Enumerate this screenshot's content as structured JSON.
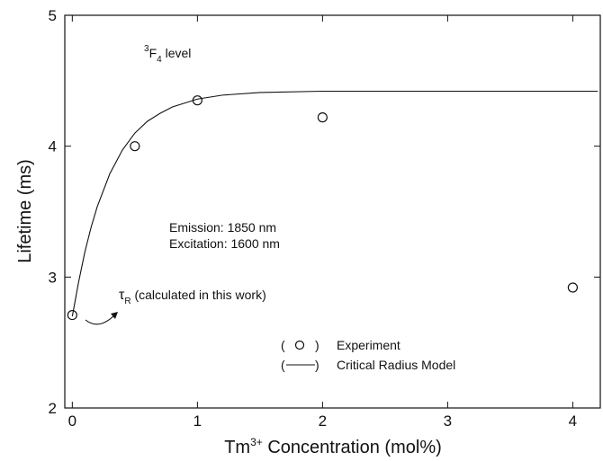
{
  "chart_data": {
    "type": "scatter",
    "x_label": {
      "main": "Tm",
      "sup": "3+",
      "rest": " Concentration (mol%)"
    },
    "y_label": "Lifetime (ms)",
    "level_label": {
      "sup": "3",
      "main": "F",
      "sub": "4",
      "rest": " level"
    },
    "emission_note": [
      "Emission: 1850 nm",
      "Excitation: 1600 nm"
    ],
    "tau_note": {
      "main": "τ",
      "sub": "R",
      "rest": " (calculated in this work)"
    },
    "xlim": [
      -0.06,
      4.22
    ],
    "ylim": [
      2,
      5
    ],
    "xticks": [
      0,
      1,
      2,
      3,
      4
    ],
    "yticks": [
      2,
      3,
      4,
      5
    ],
    "series": [
      {
        "name": "Experiment",
        "type": "scatter",
        "color": "#111111",
        "x": [
          0,
          0.5,
          1,
          2,
          4
        ],
        "values": [
          2.71,
          4.0,
          4.35,
          4.22,
          2.92
        ]
      },
      {
        "name": "Critical Radius Model",
        "type": "line",
        "color": "#111111",
        "x": [
          0,
          0.05,
          0.1,
          0.15,
          0.2,
          0.3,
          0.4,
          0.5,
          0.6,
          0.7,
          0.8,
          1.0,
          1.2,
          1.5,
          2,
          3,
          4.2
        ],
        "values": [
          2.7,
          2.96,
          3.19,
          3.38,
          3.54,
          3.79,
          3.97,
          4.1,
          4.19,
          4.25,
          4.3,
          4.36,
          4.39,
          4.41,
          4.42,
          4.42,
          4.42
        ]
      }
    ]
  }
}
